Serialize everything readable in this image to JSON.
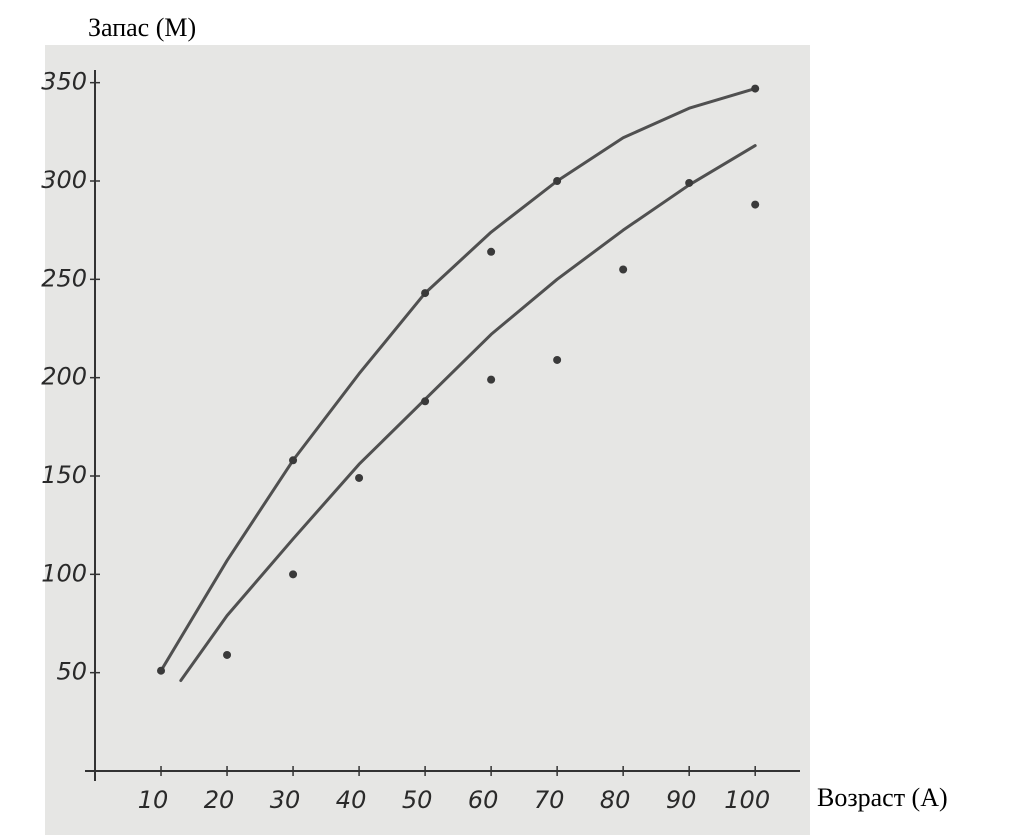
{
  "chart_data": {
    "type": "scatter",
    "y_label": "Запас (M)",
    "x_label": "Возраст (A)",
    "xlim": [
      0,
      103
    ],
    "ylim": [
      0,
      360
    ],
    "xticks": [
      10,
      20,
      30,
      40,
      50,
      60,
      70,
      80,
      90,
      100
    ],
    "yticks": [
      50,
      100,
      150,
      200,
      250,
      300,
      350
    ],
    "point_color": "#3a3a3a",
    "points": {
      "x": [
        10,
        20,
        30,
        30,
        40,
        50,
        50,
        60,
        60,
        70,
        70,
        80,
        90,
        100,
        100
      ],
      "y": [
        51,
        59,
        158,
        100,
        149,
        243,
        188,
        264,
        199,
        300,
        209,
        255,
        299,
        347,
        288
      ]
    },
    "curve_color": "#505050",
    "curves": [
      {
        "x": [
          10,
          20,
          30,
          40,
          50,
          60,
          70,
          80,
          90,
          100
        ],
        "y": [
          51,
          107,
          158,
          202,
          243,
          274,
          300,
          322,
          337,
          347
        ]
      },
      {
        "x": [
          13,
          20,
          30,
          40,
          50,
          60,
          70,
          80,
          90,
          100
        ],
        "y": [
          46,
          79,
          118,
          156,
          189,
          222,
          250,
          275,
          298,
          318
        ]
      }
    ]
  }
}
